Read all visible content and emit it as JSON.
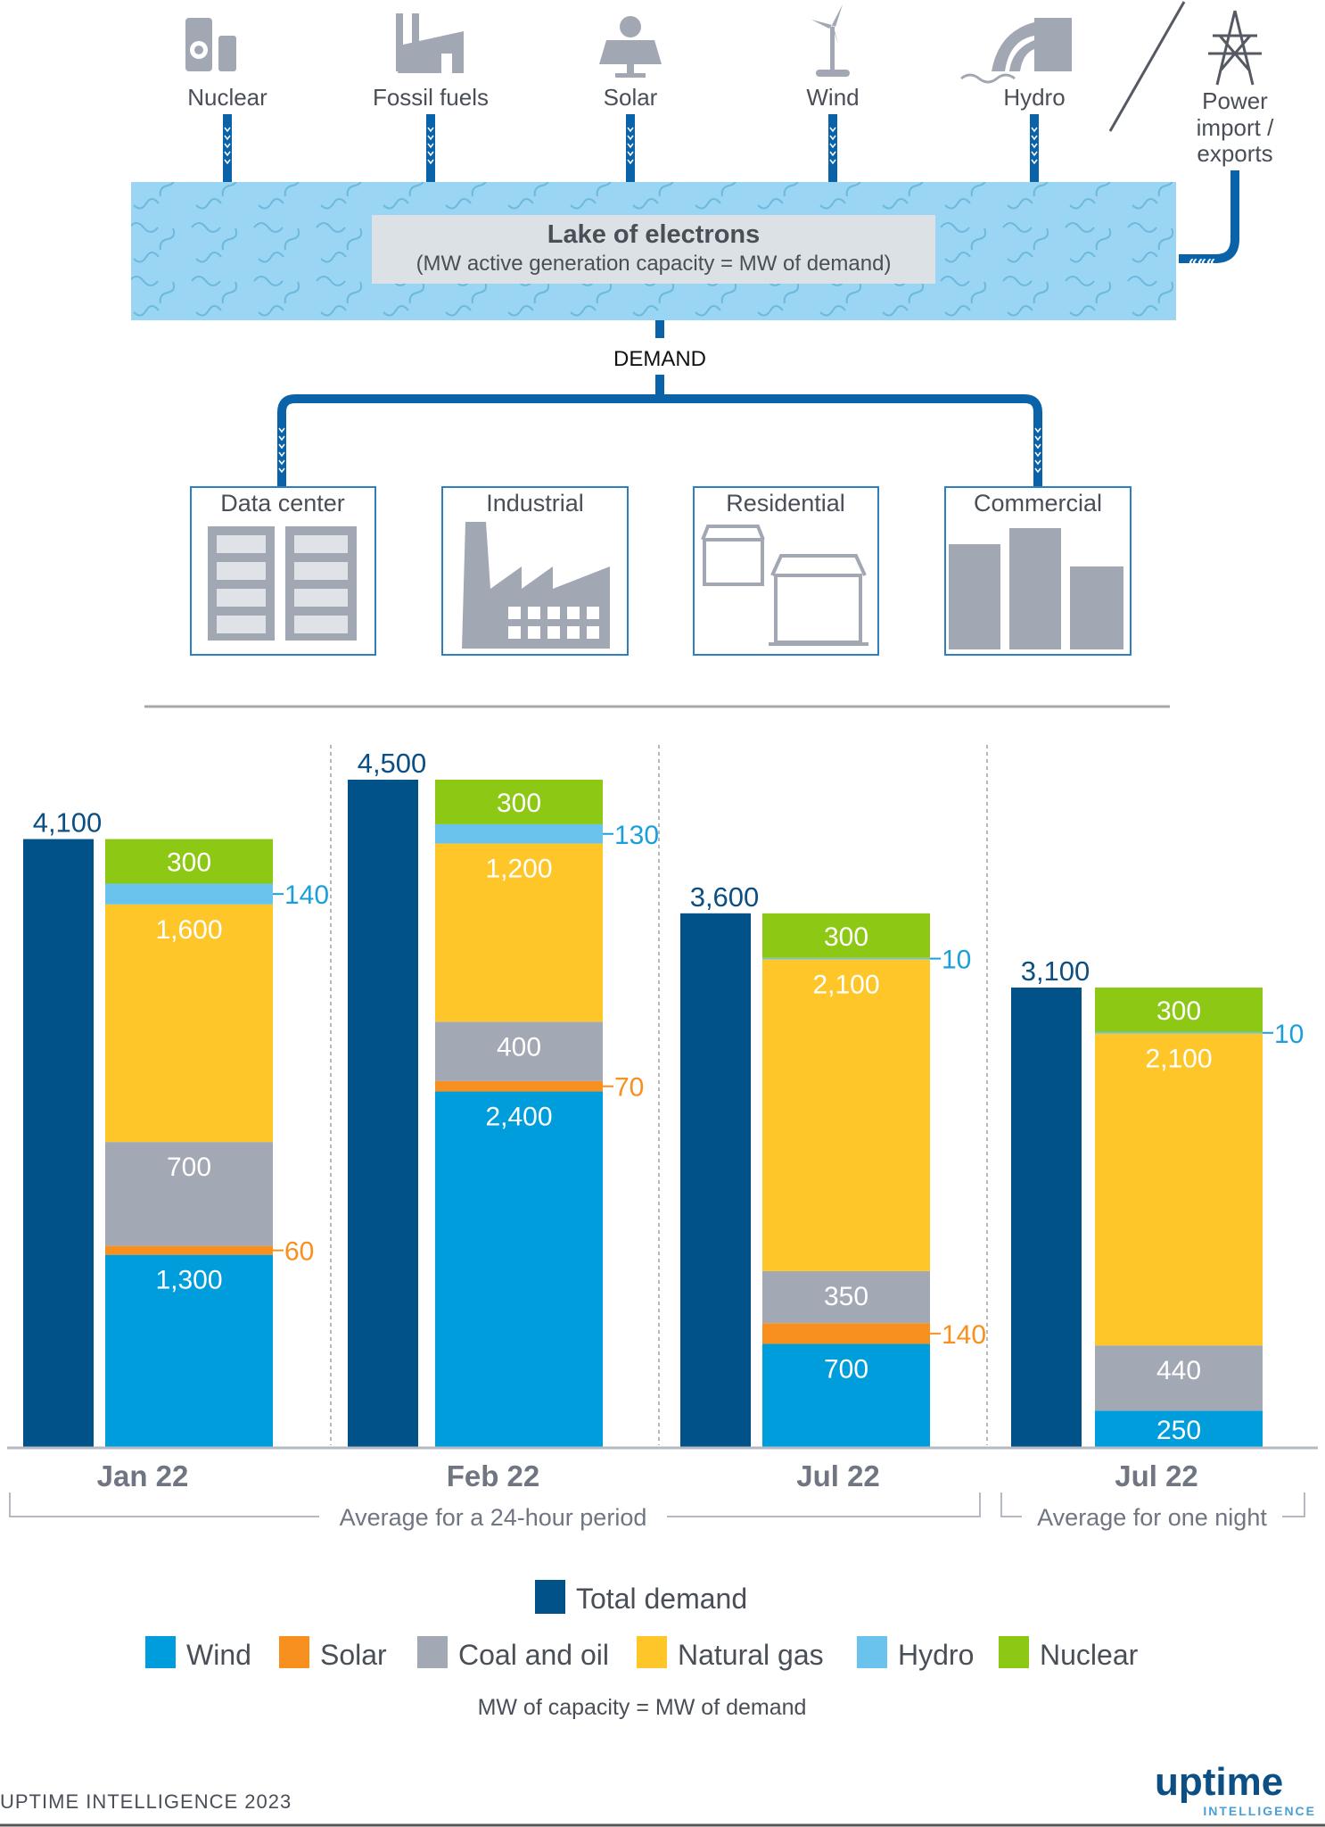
{
  "sources": [
    {
      "label": "Nuclear",
      "icon": "nuclear-plant-icon"
    },
    {
      "label": "Fossil fuels",
      "icon": "factory-icon"
    },
    {
      "label": "Solar",
      "icon": "solar-panel-icon"
    },
    {
      "label": "Wind",
      "icon": "wind-turbine-icon"
    },
    {
      "label": "Hydro",
      "icon": "dam-icon"
    }
  ],
  "power_import": {
    "lines": [
      "Power",
      "import /",
      "exports"
    ],
    "icon": "power-pylon-icon"
  },
  "lake": {
    "title": "Lake of electrons",
    "subtitle": "(MW active generation capacity = MW of demand)"
  },
  "demand_label": "DEMAND",
  "consumers": [
    {
      "label": "Data center",
      "icon": "server-rack-icon"
    },
    {
      "label": "Industrial",
      "icon": "factory-icon"
    },
    {
      "label": "Residential",
      "icon": "houses-icon"
    },
    {
      "label": "Commercial",
      "icon": "office-buildings-icon"
    }
  ],
  "colors": {
    "total": "#005288",
    "wind": "#009ddc",
    "solar": "#f7901e",
    "coal": "#a3a8b5",
    "gas": "#ffc629",
    "hydro": "#69c3ec",
    "nuclear": "#8dc814",
    "pipe": "#0a62a9",
    "lake": "#9ad6f3"
  },
  "chart_data": {
    "type": "bar",
    "categories": [
      "Jan 22",
      "Feb 22",
      "Jul 22",
      "Jul 22"
    ],
    "total_demand": [
      4100,
      4500,
      3600,
      3100
    ],
    "total_labels": [
      "4,100",
      "4,500",
      "3,600",
      "3,100"
    ],
    "series": [
      {
        "name": "Wind",
        "key": "wind",
        "values": [
          1300,
          2400,
          700,
          250
        ],
        "labels": [
          "1,300",
          "2,400",
          "700",
          "250"
        ]
      },
      {
        "name": "Solar",
        "key": "solar",
        "values": [
          60,
          70,
          140,
          0
        ],
        "labels": [
          "60",
          "70",
          "140",
          ""
        ]
      },
      {
        "name": "Coal and oil",
        "key": "coal",
        "values": [
          700,
          400,
          350,
          440
        ],
        "labels": [
          "700",
          "400",
          "350",
          "440"
        ]
      },
      {
        "name": "Natural gas",
        "key": "gas",
        "values": [
          1600,
          1200,
          2100,
          2100
        ],
        "labels": [
          "1,600",
          "1,200",
          "2,100",
          "2,100"
        ]
      },
      {
        "name": "Hydro",
        "key": "hydro",
        "values": [
          140,
          130,
          10,
          10
        ],
        "labels": [
          "140",
          "130",
          "10",
          "10"
        ]
      },
      {
        "name": "Nuclear",
        "key": "nuclear",
        "values": [
          300,
          300,
          300,
          300
        ],
        "labels": [
          "300",
          "300",
          "300",
          "300"
        ]
      }
    ],
    "total_series_name": "Total demand",
    "brackets": [
      "Average for a 24-hour period",
      "Average for one night"
    ],
    "caption": "MW of capacity = MW of demand",
    "ylim": [
      0,
      4500
    ],
    "grid": false,
    "legend": "bottom"
  },
  "footer": {
    "credit": "UPTIME INTELLIGENCE 2023",
    "logo_main": "uptime",
    "logo_sub": "INTELLIGENCE"
  }
}
